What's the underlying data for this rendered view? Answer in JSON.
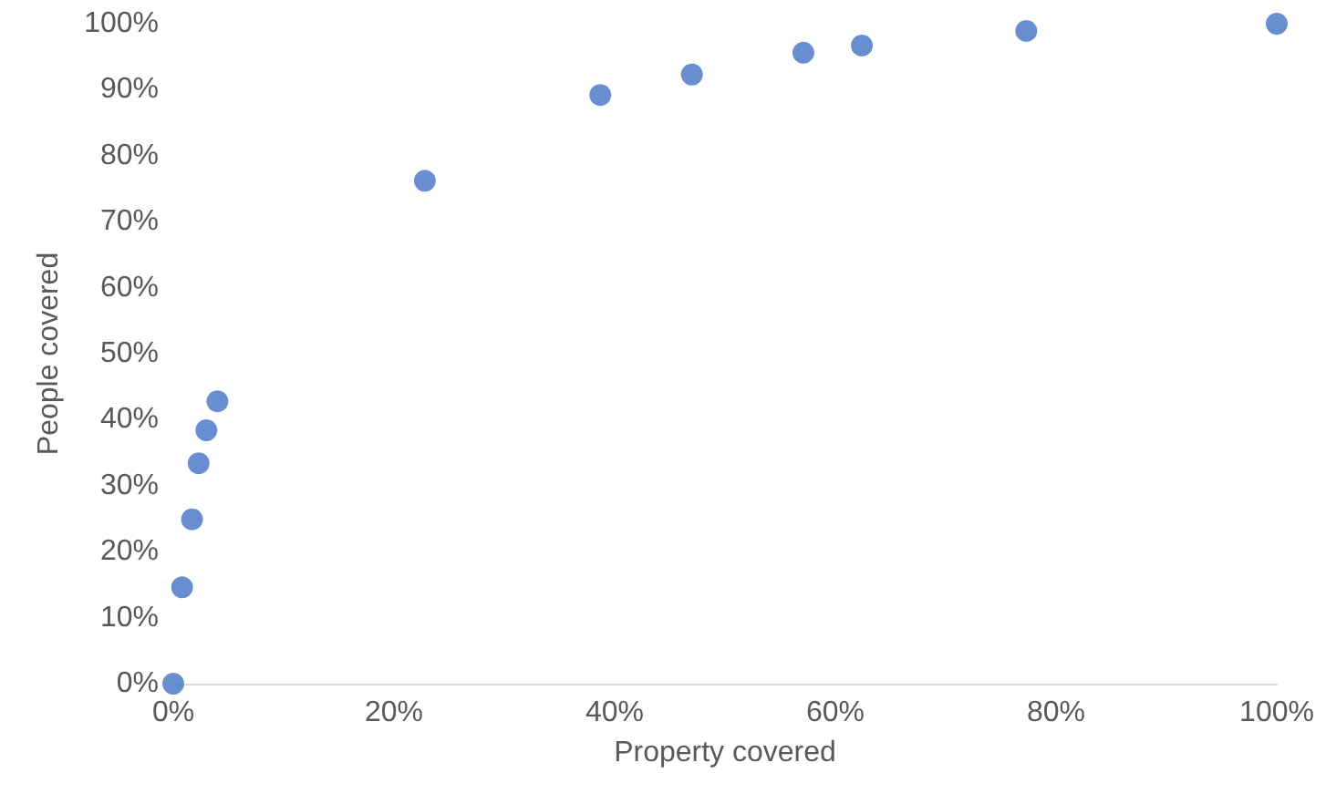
{
  "chart_data": {
    "type": "scatter",
    "xlabel": "Property covered",
    "ylabel": "People covered",
    "x": [
      0,
      0.8,
      1.7,
      2.3,
      3.0,
      4.0,
      22.8,
      38.7,
      47.0,
      57.1,
      62.4,
      77.3,
      100
    ],
    "series": [
      {
        "color": "#4472c4",
        "values": [
          0,
          14.6,
          24.9,
          33.4,
          38.4,
          42.8,
          76.2,
          89.2,
          92.3,
          95.6,
          96.7,
          98.9,
          100
        ]
      }
    ],
    "xlim": [
      0,
      100
    ],
    "ylim": [
      0,
      100
    ],
    "xticks": [
      {
        "value": 0,
        "label": "0%"
      },
      {
        "value": 20,
        "label": "20%"
      },
      {
        "value": 40,
        "label": "40%"
      },
      {
        "value": 60,
        "label": "60%"
      },
      {
        "value": 80,
        "label": "80%"
      },
      {
        "value": 100,
        "label": "100%"
      }
    ],
    "yticks": [
      {
        "value": 0,
        "label": "0%"
      },
      {
        "value": 10,
        "label": "10%"
      },
      {
        "value": 20,
        "label": "20%"
      },
      {
        "value": 30,
        "label": "30%"
      },
      {
        "value": 40,
        "label": "40%"
      },
      {
        "value": 50,
        "label": "50%"
      },
      {
        "value": 60,
        "label": "60%"
      },
      {
        "value": 70,
        "label": "70%"
      },
      {
        "value": 80,
        "label": "80%"
      },
      {
        "value": 90,
        "label": "90%"
      },
      {
        "value": 100,
        "label": "100%"
      }
    ],
    "grid": false,
    "marker": "circle"
  }
}
